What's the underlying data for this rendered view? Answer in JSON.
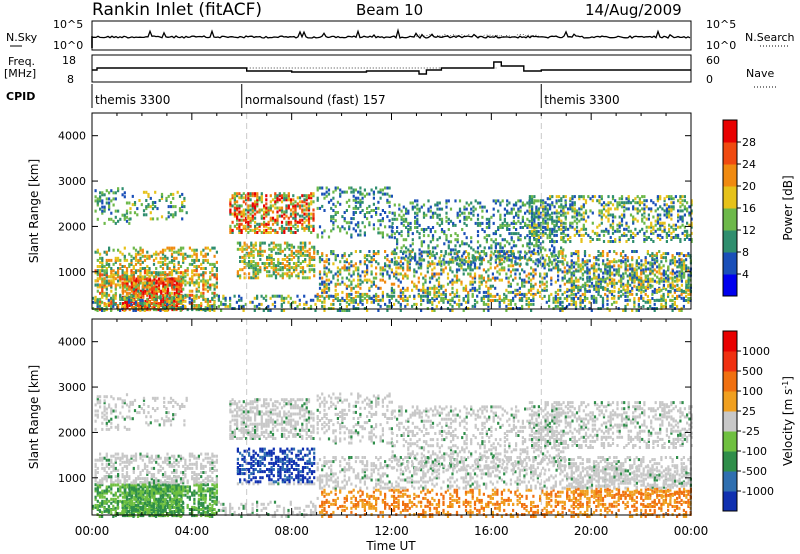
{
  "header": {
    "station": "Rankin Inlet (fitACF)",
    "beam": "Beam 10",
    "date": "14/Aug/2009"
  },
  "summary_panels": {
    "nsky": {
      "label": "N.Sky",
      "right_label": "N.Search",
      "scale_labels": [
        "10^5",
        "10^0"
      ],
      "right_scale_labels": [
        "10^5",
        "10^0"
      ]
    },
    "freq": {
      "label": "Freq.",
      "unit": "[MHz]",
      "left_ticks": [
        "18",
        "8"
      ],
      "right_label": "Nave",
      "right_ticks": [
        "60",
        "0"
      ]
    },
    "cpid": {
      "label": "CPID",
      "segments": [
        {
          "text": "themis 3300",
          "start_h": 0,
          "end_h": 6
        },
        {
          "text": "normalsound (fast) 157",
          "start_h": 6,
          "end_h": 18
        },
        {
          "text": "themis 3300",
          "start_h": 18,
          "end_h": 24
        }
      ]
    }
  },
  "chart_data": [
    {
      "type": "heatmap",
      "title": "",
      "quantity": "Power",
      "ylabel": "Slant Range [km]",
      "xlabel": "Time UT",
      "x_ticks": [
        "00:00",
        "04:00",
        "08:00",
        "12:00",
        "16:00",
        "20:00",
        "00:00"
      ],
      "xlim_h": [
        0,
        24
      ],
      "y_ticks": [
        "1000",
        "2000",
        "3000",
        "4000"
      ],
      "y_tick_values": [
        1000,
        2000,
        3000,
        4000
      ],
      "ylim": [
        180,
        4500
      ],
      "colorbar": {
        "label": "Power [dB]",
        "ticks": [
          "4",
          "8",
          "12",
          "16",
          "20",
          "24",
          "28"
        ],
        "colors": [
          "#0000ee",
          "#1a4fb8",
          "#2f8e6e",
          "#6db84a",
          "#e6c21a",
          "#f08a10",
          "#f04a10",
          "#e80000"
        ]
      }
    },
    {
      "type": "heatmap",
      "title": "",
      "quantity": "Velocity",
      "ylabel": "Slant Range [km]",
      "xlabel": "Time UT",
      "x_ticks": [
        "00:00",
        "04:00",
        "08:00",
        "12:00",
        "16:00",
        "20:00",
        "00:00"
      ],
      "xlim_h": [
        0,
        24
      ],
      "y_ticks": [
        "1000",
        "2000",
        "3000",
        "4000"
      ],
      "y_tick_values": [
        1000,
        2000,
        3000,
        4000
      ],
      "ylim": [
        180,
        4500
      ],
      "colorbar": {
        "label": "Velocity [m s",
        "label_sup": "-1",
        "label_end": "]",
        "ticks": [
          "1000",
          "500",
          "100",
          "25",
          "-25",
          "-100",
          "-500",
          "-1000"
        ],
        "colors": [
          "#1030b0",
          "#2f6fb0",
          "#2f8e4a",
          "#6fc040",
          "#c8c8c8",
          "#f0a020",
          "#f07010",
          "#f03010",
          "#e80000"
        ]
      }
    }
  ]
}
